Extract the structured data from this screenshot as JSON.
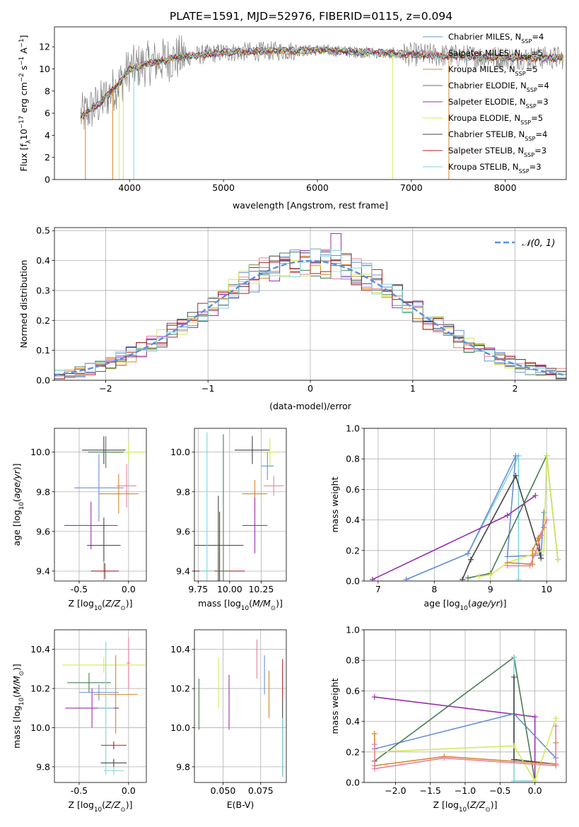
{
  "title": "PLATE=1591, MJD=52976, FIBERID=0115, z=0.094",
  "colors": {
    "chabrier_miles": "#6a8fd8",
    "salpeter_miles": "#e8819f",
    "kroupa_miles": "#d4862a",
    "chabrier_elodie": "#4a7c55",
    "salpeter_elodie": "#9b2fae",
    "kroupa_elodie": "#d6e85a",
    "chabrier_stelib": "#444444",
    "salpeter_stelib": "#b22222",
    "kroupa_stelib": "#7fd6dd",
    "data": "#808080",
    "normal": "#5b8fe0"
  },
  "chart_data": [
    {
      "id": "spectrum",
      "type": "line",
      "title": "PLATE=1591, MJD=52976, FIBERID=0115, z=0.094",
      "xlabel": "wavelength [Angstrom, rest frame]",
      "ylabel": "Flux [f_λ10^-17 erg cm^-2 s^-1 A^-1]",
      "xlim": [
        3200,
        8650
      ],
      "ylim": [
        0,
        13.8
      ],
      "xticks": [
        4000,
        5000,
        6000,
        7000,
        8000
      ],
      "yticks": [
        0,
        2,
        4,
        6,
        8,
        10,
        12
      ],
      "legend_position": "top-right",
      "series": [
        {
          "name": "Chabrier MILES, N_SSP=4",
          "key": "chabrier_miles"
        },
        {
          "name": "Salpeter MILES, N_SSP=5",
          "key": "salpeter_miles"
        },
        {
          "name": "Kroupa MILES, N_SSP=5",
          "key": "kroupa_miles"
        },
        {
          "name": "Chabrier ELODIE, N_SSP=4",
          "key": "chabrier_elodie"
        },
        {
          "name": "Salpeter ELODIE, N_SSP=3",
          "key": "salpeter_elodie"
        },
        {
          "name": "Kroupa ELODIE, N_SSP=5",
          "key": "kroupa_elodie"
        },
        {
          "name": "Chabrier STELIB, N_SSP=4",
          "key": "chabrier_stelib"
        },
        {
          "name": "Salpeter STELIB, N_SSP=3",
          "key": "salpeter_stelib"
        },
        {
          "name": "Kroupa STELIB, N_SSP=3",
          "key": "kroupa_stelib"
        }
      ],
      "continuum": {
        "x": [
          3500,
          3700,
          3900,
          4000,
          4200,
          4500,
          5000,
          5500,
          6000,
          6500,
          7000,
          7400,
          8000,
          8600
        ],
        "y": [
          5.8,
          7.0,
          8.8,
          10.0,
          10.5,
          11.0,
          11.5,
          11.6,
          11.7,
          11.5,
          11.3,
          11.2,
          11.0,
          11.0
        ]
      }
    },
    {
      "id": "residuals",
      "type": "line",
      "xlabel": "(data-model)/error",
      "ylabel": "Normed distribution",
      "xlim": [
        -2.5,
        2.5
      ],
      "ylim": [
        0,
        0.51
      ],
      "xticks": [
        -2,
        -1,
        0,
        1,
        2
      ],
      "yticks": [
        0.0,
        0.1,
        0.2,
        0.3,
        0.4,
        0.5
      ],
      "legend": "N(0,1)",
      "legend_position": "top-right",
      "bin_width": 0.1,
      "histogram_max": 0.49,
      "curve": {
        "type": "gaussian",
        "mu": 0,
        "sigma": 1
      }
    },
    {
      "id": "age_vs_Z",
      "type": "scatter",
      "xlabel": "Z [log10(Z/Z_sun)]",
      "ylabel": "age [log10(age/yr)]",
      "xlim": [
        -0.75,
        0.18
      ],
      "ylim": [
        9.35,
        10.12
      ],
      "xticks": [
        -0.5,
        0.0
      ],
      "yticks": [
        9.4,
        9.6,
        9.8,
        10.0
      ],
      "points": [
        {
          "key": "chabrier_stelib",
          "x": -0.25,
          "y": 10.01,
          "ex": 0.22,
          "ey": 0.07
        },
        {
          "key": "kroupa_elodie",
          "x": 0.0,
          "y": 10.0,
          "ex": 0.2,
          "ey": 0.05
        },
        {
          "key": "chabrier_elodie",
          "x": -0.23,
          "y": 10.0,
          "ex": 0.18,
          "ey": 0.08
        },
        {
          "key": "chabrier_miles",
          "x": -0.3,
          "y": 9.82,
          "ex": 0.25,
          "ey": 0.17
        },
        {
          "key": "salpeter_miles",
          "x": -0.02,
          "y": 9.83,
          "ex": 0.1,
          "ey": 0.11
        },
        {
          "key": "kroupa_miles",
          "x": -0.1,
          "y": 9.79,
          "ex": 0.2,
          "ey": 0.1
        },
        {
          "key": "salpeter_elodie",
          "x": -0.38,
          "y": 9.63,
          "ex": 0.27,
          "ey": 0.12
        },
        {
          "key": "chabrier_stelib",
          "x": -0.25,
          "y": 9.53,
          "ex": 0.17,
          "ey": 0.14
        },
        {
          "key": "kroupa_stelib",
          "x": -0.25,
          "y": 9.4,
          "ex": 0.16,
          "ey": 0.05
        },
        {
          "key": "salpeter_stelib",
          "x": -0.24,
          "y": 9.4,
          "ex": 0.14,
          "ey": 0.04
        }
      ]
    },
    {
      "id": "age_vs_mass",
      "type": "scatter",
      "xlabel": "mass [log10(M/M_sun)]",
      "ylabel": "",
      "xlim": [
        9.72,
        10.45
      ],
      "ylim": [
        9.35,
        10.12
      ],
      "xticks": [
        9.75,
        10.0,
        10.25
      ],
      "yticks": [
        9.4,
        9.6,
        9.8,
        10.0
      ],
      "points": [
        {
          "key": "chabrier_stelib",
          "x": 10.18,
          "y": 10.01,
          "ex": 0.14,
          "ey": 0.07
        },
        {
          "key": "kroupa_elodie",
          "x": 10.32,
          "y": 10.0,
          "ex": 0.05,
          "ey": 0.07
        },
        {
          "key": "chabrier_miles",
          "x": 10.3,
          "y": 9.93,
          "ex": 0.05,
          "ey": 0.07
        },
        {
          "key": "salpeter_miles",
          "x": 10.35,
          "y": 9.83,
          "ex": 0.08,
          "ey": 0.05
        },
        {
          "key": "kroupa_miles",
          "x": 10.2,
          "y": 9.79,
          "ex": 0.1,
          "ey": 0.07
        },
        {
          "key": "salpeter_elodie",
          "x": 10.2,
          "y": 9.63,
          "ex": 0.1,
          "ey": 0.14
        },
        {
          "key": "chabrier_stelib",
          "x": 9.91,
          "y": 9.53,
          "ex": 0.2,
          "ey": 0.25
        },
        {
          "key": "salpeter_stelib",
          "x": 9.92,
          "y": 9.4,
          "ex": 0.2,
          "ey": 0.3
        },
        {
          "key": "kroupa_stelib",
          "x": 9.82,
          "y": 9.4,
          "ex": 0.06,
          "ey": 0.7
        },
        {
          "key": "chabrier_elodie",
          "x": 9.95,
          "y": 9.4,
          "ex": 0.05,
          "ey": 0.69
        }
      ]
    },
    {
      "id": "weight_vs_age",
      "type": "line",
      "xlabel": "age [log10(age/yr)]",
      "ylabel": "mass weight",
      "xlim": [
        6.75,
        10.35
      ],
      "ylim": [
        0,
        1.0
      ],
      "xticks": [
        7,
        8,
        9,
        10
      ],
      "yticks": [
        0.0,
        0.2,
        0.4,
        0.6,
        0.8,
        1.0
      ],
      "series": [
        {
          "key": "kroupa_stelib",
          "x": [
            7.5,
            8.6,
            9.5,
            9.5
          ],
          "y": [
            0.01,
            0.18,
            0.82,
            0.01
          ]
        },
        {
          "key": "chabrier_miles",
          "x": [
            7.5,
            8.6,
            9.45,
            9.3,
            9.9,
            9.95
          ],
          "y": [
            0.01,
            0.18,
            0.82,
            0.16,
            0.17,
            0.45
          ]
        },
        {
          "key": "salpeter_elodie",
          "x": [
            6.9,
            9.3,
            9.8
          ],
          "y": [
            0.01,
            0.43,
            0.56
          ]
        },
        {
          "key": "chabrier_stelib",
          "x": [
            8.5,
            8.65,
            9.45,
            9.9,
            9.85
          ],
          "y": [
            0.01,
            0.14,
            0.69,
            0.15,
            0.28
          ]
        },
        {
          "key": "chabrier_elodie",
          "x": [
            8.6,
            9.0,
            10.0,
            10.2
          ],
          "y": [
            0.02,
            0.05,
            0.82,
            0.14
          ]
        },
        {
          "key": "kroupa_elodie",
          "x": [
            8.8,
            9.0,
            9.3,
            9.95,
            10.0,
            10.2
          ],
          "y": [
            0.03,
            0.04,
            0.12,
            0.2,
            0.82,
            0.14
          ]
        },
        {
          "key": "kroupa_miles",
          "x": [
            9.3,
            9.75,
            9.75,
            9.85,
            9.95
          ],
          "y": [
            0.12,
            0.11,
            0.2,
            0.28,
            0.35
          ]
        },
        {
          "key": "salpeter_miles",
          "x": [
            9.3,
            9.7,
            9.8,
            9.9,
            10.0
          ],
          "y": [
            0.1,
            0.1,
            0.18,
            0.3,
            0.4
          ]
        }
      ]
    },
    {
      "id": "mass_vs_Z",
      "type": "scatter",
      "xlabel": "Z [log10(Z/Z_sun)]",
      "ylabel": "mass [log10(M/M_sun)]",
      "xlim": [
        -0.75,
        0.18
      ],
      "ylim": [
        9.72,
        10.5
      ],
      "xticks": [
        -0.5,
        0.0
      ],
      "yticks": [
        9.8,
        10.0,
        10.2,
        10.4
      ],
      "points": [
        {
          "key": "salpeter_miles",
          "x": 0.0,
          "y": 10.33,
          "ex": 0.02,
          "ey": 0.13
        },
        {
          "key": "kroupa_elodie",
          "x": -0.25,
          "y": 10.32,
          "ex": 0.42,
          "ey": 0.04
        },
        {
          "key": "chabrier_elodie",
          "x": -0.4,
          "y": 10.23,
          "ex": 0.22,
          "ey": 0.05
        },
        {
          "key": "chabrier_miles",
          "x": -0.3,
          "y": 10.18,
          "ex": 0.2,
          "ey": 0.04
        },
        {
          "key": "kroupa_miles",
          "x": -0.13,
          "y": 10.17,
          "ex": 0.22,
          "ey": 0.2
        },
        {
          "key": "salpeter_elodie",
          "x": -0.37,
          "y": 10.1,
          "ex": 0.27,
          "ey": 0.1
        },
        {
          "key": "kroupa_stelib",
          "x": -0.23,
          "y": 10.1,
          "ex": 0.08,
          "ey": 0.34
        },
        {
          "key": "salpeter_stelib",
          "x": -0.15,
          "y": 9.91,
          "ex": 0.13,
          "ey": 0.02
        },
        {
          "key": "chabrier_stelib",
          "x": -0.15,
          "y": 9.82,
          "ex": 0.13,
          "ey": 0.02
        },
        {
          "key": "kroupa_stelib",
          "x": -0.15,
          "y": 9.78,
          "ex": 0.1,
          "ey": 0.02
        }
      ]
    },
    {
      "id": "mass_vs_ebv",
      "type": "scatter",
      "xlabel": "E(B-V)",
      "ylabel": "",
      "xlim": [
        0.031,
        0.092
      ],
      "ylim": [
        9.72,
        10.5
      ],
      "xticks": [
        0.05,
        0.075
      ],
      "yticks": [
        9.8,
        10.0,
        10.2,
        10.4
      ],
      "points": [
        {
          "key": "chabrier_elodie",
          "x": 0.034,
          "y": 10.12,
          "ey": 0.13
        },
        {
          "key": "kroupa_elodie",
          "x": 0.047,
          "y": 10.23,
          "ey": 0.13
        },
        {
          "key": "salpeter_elodie",
          "x": 0.054,
          "y": 10.13,
          "ey": 0.14
        },
        {
          "key": "salpeter_miles",
          "x": 0.0725,
          "y": 10.35,
          "ey": 0.1
        },
        {
          "key": "chabrier_miles",
          "x": 0.0775,
          "y": 10.27,
          "ey": 0.1
        },
        {
          "key": "kroupa_miles",
          "x": 0.0805,
          "y": 10.17,
          "ey": 0.12
        },
        {
          "key": "salpeter_stelib",
          "x": 0.0895,
          "y": 10.25,
          "ey": 0.1
        },
        {
          "key": "chabrier_stelib",
          "x": 0.0895,
          "y": 9.95,
          "ey": 0.2
        },
        {
          "key": "kroupa_stelib",
          "x": 0.0895,
          "y": 9.9,
          "ey": 0.15
        }
      ]
    },
    {
      "id": "weight_vs_Z",
      "type": "line",
      "xlabel": "Z [log10(Z/Z_sun)]",
      "ylabel": "mass weight",
      "xlim": [
        -2.45,
        0.45
      ],
      "ylim": [
        0,
        1.0
      ],
      "xticks": [
        -2.0,
        -1.5,
        -1.0,
        -0.5,
        0.0
      ],
      "yticks": [
        0.0,
        0.2,
        0.4,
        0.6,
        0.8,
        1.0
      ],
      "series": [
        {
          "key": "salpeter_elodie",
          "x": [
            -2.3,
            0.0,
            0.0
          ],
          "y": [
            0.56,
            0.43,
            0.01
          ]
        },
        {
          "key": "chabrier_miles",
          "x": [
            -2.3,
            -0.3,
            0.3
          ],
          "y": [
            0.22,
            0.45,
            0.16
          ]
        },
        {
          "key": "chabrier_elodie",
          "x": [
            -2.3,
            -0.3,
            0.0
          ],
          "y": [
            0.14,
            0.82,
            0.01
          ]
        },
        {
          "key": "kroupa_stelib",
          "x": [
            -0.3,
            -0.3,
            0.0
          ],
          "y": [
            0.82,
            0.01,
            0.01
          ]
        },
        {
          "key": "chabrier_stelib",
          "x": [
            -0.3,
            -0.3,
            0.3
          ],
          "y": [
            0.69,
            0.15,
            0.12
          ]
        },
        {
          "key": "kroupa_elodie",
          "x": [
            -2.3,
            -0.3,
            0.0,
            0.3
          ],
          "y": [
            0.2,
            0.24,
            0.01,
            0.42
          ]
        },
        {
          "key": "kroupa_miles",
          "x": [
            -2.3,
            -2.3,
            -1.3,
            0.3,
            0.3
          ],
          "y": [
            0.32,
            0.11,
            0.17,
            0.12,
            0.26
          ]
        },
        {
          "key": "salpeter_miles",
          "x": [
            -2.3,
            -2.3,
            -1.3,
            0.3,
            0.3
          ],
          "y": [
            0.25,
            0.09,
            0.16,
            0.11,
            0.37
          ]
        }
      ]
    }
  ]
}
